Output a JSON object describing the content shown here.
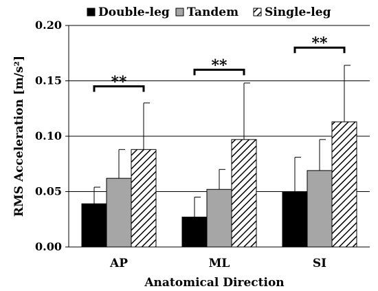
{
  "chart_data": {
    "type": "bar",
    "categories": [
      "AP",
      "ML",
      "SI"
    ],
    "series": [
      {
        "name": "Double-leg",
        "values": [
          0.039,
          0.027,
          0.05
        ],
        "errors": [
          0.015,
          0.018,
          0.031
        ],
        "fill": "#000000",
        "pattern": "solid"
      },
      {
        "name": "Tandem",
        "values": [
          0.062,
          0.052,
          0.069
        ],
        "errors": [
          0.026,
          0.018,
          0.028
        ],
        "fill": "#a6a6a6",
        "pattern": "solid"
      },
      {
        "name": "Single-leg",
        "values": [
          0.088,
          0.097,
          0.113
        ],
        "errors": [
          0.042,
          0.051,
          0.051
        ],
        "fill": "#ffffff",
        "pattern": "diagonal-hatch"
      }
    ],
    "xlabel": "Anatomical Direction",
    "ylabel": "RMS Acceleration [m/s²]",
    "ylim": [
      0,
      0.2
    ],
    "yticks": [
      "0.00",
      "0.05",
      "0.10",
      "0.15",
      "0.20"
    ],
    "grid": true,
    "legend_position": "top",
    "annotations": [
      {
        "text": "**",
        "category": "AP",
        "bracket_value": 0.145
      },
      {
        "text": "**",
        "category": "ML",
        "bracket_value": 0.16
      },
      {
        "text": "**",
        "category": "SI",
        "bracket_value": 0.18
      }
    ]
  }
}
